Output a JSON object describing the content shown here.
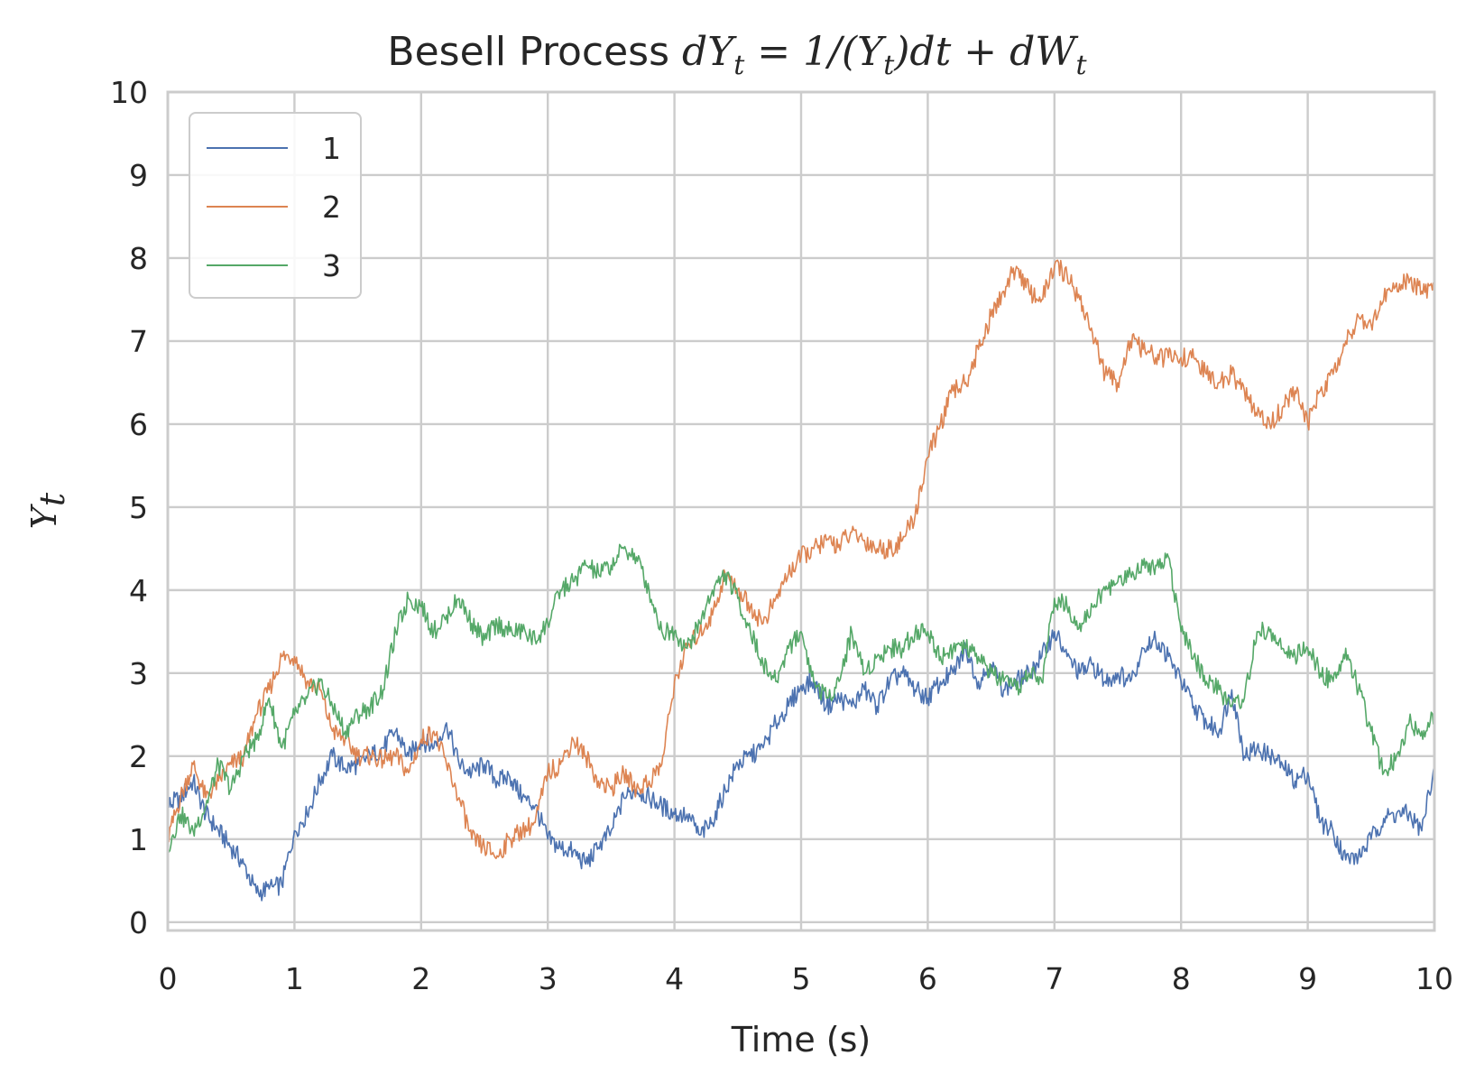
{
  "chart_data": {
    "type": "line",
    "title": "Besell Process",
    "title_math": {
      "lhs": "dY",
      "lhs_sub": "t",
      "eq": " = 1/(Y",
      "eq_sub": "t",
      "rhs": ")dt + dW",
      "rhs_sub": "t"
    },
    "xlabel": "Time (s)",
    "ylabel": "Y",
    "ylabel_sub": "t",
    "xlim": [
      0,
      10
    ],
    "ylim": [
      -0.1,
      10
    ],
    "xticks": [
      "0",
      "1",
      "2",
      "3",
      "4",
      "5",
      "6",
      "7",
      "8",
      "9",
      "10"
    ],
    "yticks": [
      "0",
      "1",
      "2",
      "3",
      "4",
      "5",
      "6",
      "7",
      "8",
      "9",
      "10"
    ],
    "grid": true,
    "legend": "top-left",
    "series": [
      {
        "name": "1",
        "color": "#4c72b0",
        "x": [
          0,
          0.1,
          0.2,
          0.3,
          0.4,
          0.5,
          0.6,
          0.7,
          0.8,
          0.9,
          1.0,
          1.1,
          1.2,
          1.3,
          1.4,
          1.5,
          1.6,
          1.7,
          1.8,
          1.9,
          2.0,
          2.1,
          2.2,
          2.3,
          2.4,
          2.5,
          2.6,
          2.7,
          2.8,
          2.9,
          3.0,
          3.1,
          3.2,
          3.3,
          3.4,
          3.5,
          3.6,
          3.7,
          3.8,
          3.9,
          4.0,
          4.1,
          4.2,
          4.3,
          4.4,
          4.5,
          4.6,
          4.7,
          4.8,
          4.9,
          5.0,
          5.1,
          5.2,
          5.3,
          5.4,
          5.5,
          5.6,
          5.7,
          5.8,
          5.9,
          6.0,
          6.1,
          6.2,
          6.3,
          6.4,
          6.5,
          6.6,
          6.7,
          6.8,
          6.9,
          7.0,
          7.1,
          7.2,
          7.3,
          7.4,
          7.5,
          7.6,
          7.7,
          7.8,
          7.9,
          8.0,
          8.1,
          8.2,
          8.3,
          8.4,
          8.5,
          8.6,
          8.7,
          8.8,
          8.9,
          9.0,
          9.1,
          9.2,
          9.3,
          9.4,
          9.5,
          9.6,
          9.7,
          9.8,
          9.9,
          10.0
        ],
        "values": [
          1.4,
          1.5,
          1.7,
          1.3,
          1.1,
          0.9,
          0.7,
          0.35,
          0.4,
          0.45,
          1.1,
          1.3,
          1.7,
          2.0,
          1.85,
          1.9,
          2.0,
          2.1,
          2.3,
          2.0,
          2.2,
          2.1,
          2.4,
          1.9,
          1.8,
          1.9,
          1.7,
          1.75,
          1.5,
          1.4,
          1.0,
          0.9,
          0.85,
          0.7,
          0.9,
          1.1,
          1.5,
          1.6,
          1.5,
          1.4,
          1.3,
          1.3,
          1.05,
          1.2,
          1.6,
          1.9,
          2.0,
          2.1,
          2.4,
          2.6,
          2.85,
          2.9,
          2.6,
          2.7,
          2.6,
          2.8,
          2.6,
          2.9,
          3.0,
          2.8,
          2.7,
          2.9,
          3.0,
          3.3,
          2.9,
          3.1,
          2.8,
          2.9,
          3.0,
          3.2,
          3.5,
          3.2,
          3.0,
          3.1,
          2.9,
          3.0,
          2.9,
          3.3,
          3.4,
          3.2,
          2.9,
          2.6,
          2.4,
          2.3,
          2.8,
          2.0,
          2.1,
          2.0,
          1.9,
          1.7,
          1.8,
          1.2,
          1.1,
          0.75,
          0.8,
          1.0,
          1.25,
          1.3,
          1.3,
          1.1,
          1.9
        ]
      },
      {
        "name": "2",
        "color": "#dd8452",
        "x": [
          0,
          0.1,
          0.2,
          0.3,
          0.4,
          0.5,
          0.6,
          0.7,
          0.8,
          0.9,
          1.0,
          1.1,
          1.2,
          1.3,
          1.4,
          1.5,
          1.6,
          1.7,
          1.8,
          1.9,
          2.0,
          2.1,
          2.2,
          2.3,
          2.4,
          2.5,
          2.6,
          2.7,
          2.8,
          2.9,
          3.0,
          3.1,
          3.2,
          3.3,
          3.4,
          3.5,
          3.6,
          3.7,
          3.8,
          3.9,
          4.0,
          4.1,
          4.2,
          4.3,
          4.4,
          4.5,
          4.6,
          4.7,
          4.8,
          4.9,
          5.0,
          5.1,
          5.2,
          5.3,
          5.4,
          5.5,
          5.6,
          5.7,
          5.8,
          5.9,
          6.0,
          6.1,
          6.2,
          6.3,
          6.4,
          6.5,
          6.6,
          6.7,
          6.8,
          6.9,
          7.0,
          7.1,
          7.2,
          7.3,
          7.4,
          7.5,
          7.6,
          7.7,
          7.8,
          7.9,
          8.0,
          8.1,
          8.2,
          8.3,
          8.4,
          8.5,
          8.6,
          8.7,
          8.8,
          8.9,
          9.0,
          9.1,
          9.2,
          9.3,
          9.4,
          9.5,
          9.6,
          9.7,
          9.8,
          9.9,
          10.0
        ],
        "values": [
          1.0,
          1.5,
          1.9,
          1.5,
          1.7,
          1.9,
          2.0,
          2.5,
          2.8,
          3.2,
          3.2,
          2.9,
          2.8,
          2.3,
          2.2,
          2.0,
          2.0,
          1.95,
          2.0,
          1.8,
          2.2,
          2.3,
          1.9,
          1.5,
          1.0,
          0.9,
          0.8,
          1.0,
          1.1,
          1.2,
          1.8,
          1.9,
          2.2,
          2.0,
          1.7,
          1.6,
          1.8,
          1.6,
          1.7,
          1.9,
          2.9,
          3.3,
          3.5,
          3.7,
          4.2,
          4.0,
          3.8,
          3.6,
          3.9,
          4.2,
          4.4,
          4.5,
          4.6,
          4.55,
          4.7,
          4.6,
          4.5,
          4.5,
          4.6,
          4.9,
          5.6,
          6.0,
          6.4,
          6.5,
          6.9,
          7.3,
          7.6,
          7.9,
          7.6,
          7.5,
          7.9,
          7.8,
          7.5,
          7.1,
          6.6,
          6.5,
          7.0,
          6.9,
          6.8,
          6.8,
          6.8,
          6.8,
          6.6,
          6.5,
          6.6,
          6.4,
          6.1,
          6.0,
          6.2,
          6.4,
          6.0,
          6.4,
          6.6,
          7.0,
          7.3,
          7.2,
          7.5,
          7.7,
          7.7,
          7.6,
          7.6
        ]
      },
      {
        "name": "3",
        "color": "#55a868",
        "x": [
          0,
          0.1,
          0.2,
          0.3,
          0.4,
          0.5,
          0.6,
          0.7,
          0.8,
          0.9,
          1.0,
          1.1,
          1.2,
          1.3,
          1.4,
          1.5,
          1.6,
          1.7,
          1.8,
          1.9,
          2.0,
          2.1,
          2.2,
          2.3,
          2.4,
          2.5,
          2.6,
          2.7,
          2.8,
          2.9,
          3.0,
          3.1,
          3.2,
          3.3,
          3.4,
          3.5,
          3.6,
          3.7,
          3.8,
          3.9,
          4.0,
          4.1,
          4.2,
          4.3,
          4.4,
          4.5,
          4.6,
          4.7,
          4.8,
          4.9,
          5.0,
          5.1,
          5.2,
          5.3,
          5.4,
          5.5,
          5.6,
          5.7,
          5.8,
          5.9,
          6.0,
          6.1,
          6.2,
          6.3,
          6.4,
          6.5,
          6.6,
          6.7,
          6.8,
          6.9,
          7.0,
          7.1,
          7.2,
          7.3,
          7.4,
          7.5,
          7.6,
          7.7,
          7.8,
          7.9,
          8.0,
          8.1,
          8.2,
          8.3,
          8.4,
          8.5,
          8.6,
          8.7,
          8.8,
          8.9,
          9.0,
          9.1,
          9.2,
          9.3,
          9.4,
          9.5,
          9.6,
          9.7,
          9.8,
          9.9,
          10.0
        ],
        "values": [
          0.9,
          1.3,
          1.1,
          1.4,
          1.9,
          1.6,
          2.0,
          2.2,
          2.7,
          2.1,
          2.5,
          2.7,
          2.9,
          2.6,
          2.3,
          2.5,
          2.6,
          2.8,
          3.5,
          3.9,
          3.8,
          3.5,
          3.7,
          3.9,
          3.6,
          3.4,
          3.6,
          3.5,
          3.5,
          3.4,
          3.6,
          4.0,
          4.1,
          4.3,
          4.2,
          4.3,
          4.5,
          4.4,
          4.0,
          3.5,
          3.5,
          3.3,
          3.6,
          4.0,
          4.2,
          3.9,
          3.5,
          3.1,
          2.9,
          3.3,
          3.5,
          2.9,
          2.7,
          2.9,
          3.5,
          3.0,
          3.2,
          3.3,
          3.3,
          3.5,
          3.5,
          3.2,
          3.3,
          3.3,
          3.2,
          3.0,
          2.9,
          2.8,
          3.0,
          2.9,
          3.9,
          3.8,
          3.6,
          3.8,
          4.0,
          4.1,
          4.2,
          4.3,
          4.3,
          4.4,
          3.5,
          3.2,
          2.9,
          2.8,
          2.6,
          2.7,
          3.5,
          3.5,
          3.3,
          3.2,
          3.3,
          3.0,
          2.9,
          3.3,
          2.8,
          2.3,
          1.8,
          2.0,
          2.4,
          2.3,
          2.5
        ]
      }
    ]
  }
}
